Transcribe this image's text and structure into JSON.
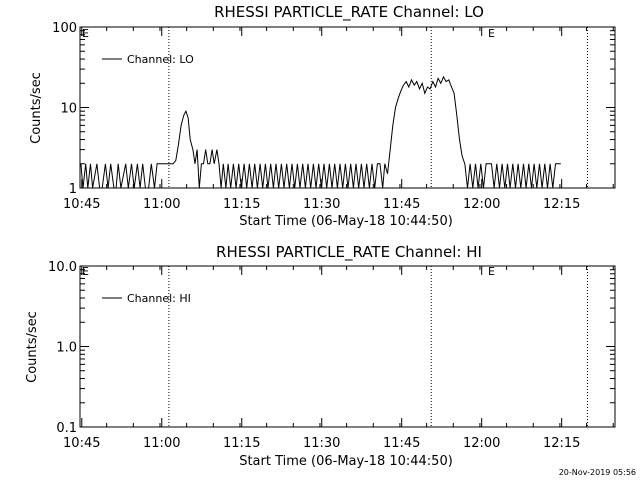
{
  "footer": {
    "timestamp": "20-Nov-2019 05:56"
  },
  "chart_data": [
    {
      "type": "line",
      "title": "RHESSI PARTICLE_RATE Channel: LO",
      "xlabel": "Start Time (06-May-18 10:44:50)",
      "ylabel": "Counts/sec",
      "yscale": "log",
      "ylim": [
        1,
        100
      ],
      "xlim": [
        -0.1667,
        100.1667
      ],
      "xtick_values": [
        0.1667,
        15.1667,
        30.1667,
        45.1667,
        60.1667,
        75.1667,
        90.1667
      ],
      "xtick_labels": [
        "10:45",
        "11:00",
        "11:15",
        "11:30",
        "11:45",
        "12:00",
        "12:15"
      ],
      "ytick_values": [
        1,
        10,
        100
      ],
      "ytick_labels": [
        "1",
        "10",
        "100"
      ],
      "legend": {
        "entries": [
          "Channel: LO"
        ],
        "placement": "top-left"
      },
      "event_lines": [
        {
          "x": 16.5,
          "label": ""
        },
        {
          "x": 65.7,
          "label": "E"
        },
        {
          "x": 95.0,
          "label": ""
        }
      ],
      "start_marker": "E",
      "series": [
        {
          "name": "Channel: LO",
          "points": [
            [
              0.0,
              2
            ],
            [
              0.4,
              1
            ],
            [
              0.9,
              2
            ],
            [
              1.3,
              1
            ],
            [
              1.8,
              2
            ],
            [
              2.2,
              1
            ],
            [
              3.0,
              2
            ],
            [
              3.5,
              1
            ],
            [
              4.0,
              1
            ],
            [
              4.6,
              2
            ],
            [
              5.1,
              1
            ],
            [
              5.6,
              2
            ],
            [
              6.2,
              1
            ],
            [
              6.6,
              1
            ],
            [
              7.0,
              2
            ],
            [
              7.5,
              1
            ],
            [
              8.4,
              2
            ],
            [
              8.9,
              1
            ],
            [
              9.5,
              2
            ],
            [
              10.0,
              1
            ],
            [
              10.6,
              2
            ],
            [
              11.1,
              1
            ],
            [
              11.6,
              2
            ],
            [
              12.1,
              1
            ],
            [
              12.7,
              1
            ],
            [
              13.2,
              2
            ],
            [
              13.8,
              1
            ],
            [
              14.3,
              2
            ],
            [
              14.8,
              2
            ],
            [
              15.4,
              2
            ],
            [
              16.0,
              2
            ],
            [
              16.8,
              2
            ],
            [
              17.3,
              2
            ],
            [
              17.8,
              2.2
            ],
            [
              18.3,
              3.5
            ],
            [
              18.8,
              6
            ],
            [
              19.3,
              8
            ],
            [
              19.7,
              9
            ],
            [
              20.1,
              7.5
            ],
            [
              20.5,
              4
            ],
            [
              21.0,
              3
            ],
            [
              21.4,
              2
            ],
            [
              21.8,
              3
            ],
            [
              22.2,
              1
            ],
            [
              22.6,
              2
            ],
            [
              23.0,
              2
            ],
            [
              23.4,
              3
            ],
            [
              23.8,
              2
            ],
            [
              24.2,
              2
            ],
            [
              24.6,
              3
            ],
            [
              25.0,
              2
            ],
            [
              25.5,
              3
            ],
            [
              25.9,
              2
            ],
            [
              26.3,
              1
            ],
            [
              26.7,
              2
            ],
            [
              27.2,
              1
            ],
            [
              27.6,
              2
            ],
            [
              28.1,
              1
            ],
            [
              28.6,
              2
            ],
            [
              29.1,
              1
            ],
            [
              29.6,
              2
            ],
            [
              30.1,
              1
            ],
            [
              30.6,
              2
            ],
            [
              31.1,
              1
            ],
            [
              31.6,
              2
            ],
            [
              32.1,
              1
            ],
            [
              32.6,
              2
            ],
            [
              33.1,
              1
            ],
            [
              33.6,
              2
            ],
            [
              34.1,
              1
            ],
            [
              34.6,
              2
            ],
            [
              35.1,
              1
            ],
            [
              35.6,
              2
            ],
            [
              36.1,
              1
            ],
            [
              36.6,
              2
            ],
            [
              37.1,
              1
            ],
            [
              37.6,
              2
            ],
            [
              38.1,
              1
            ],
            [
              38.6,
              2
            ],
            [
              39.1,
              1
            ],
            [
              39.6,
              2
            ],
            [
              40.1,
              1
            ],
            [
              40.6,
              2
            ],
            [
              41.1,
              1
            ],
            [
              41.6,
              2
            ],
            [
              42.1,
              1
            ],
            [
              42.6,
              2
            ],
            [
              43.1,
              1
            ],
            [
              43.6,
              2
            ],
            [
              44.1,
              1
            ],
            [
              44.6,
              2
            ],
            [
              45.1,
              1
            ],
            [
              45.6,
              2
            ],
            [
              46.1,
              1
            ],
            [
              46.6,
              2
            ],
            [
              47.1,
              1
            ],
            [
              47.6,
              2
            ],
            [
              48.1,
              1
            ],
            [
              48.6,
              2
            ],
            [
              49.1,
              1
            ],
            [
              49.6,
              2
            ],
            [
              50.1,
              1
            ],
            [
              50.6,
              2
            ],
            [
              51.1,
              1
            ],
            [
              51.6,
              2
            ],
            [
              52.1,
              1
            ],
            [
              52.6,
              2
            ],
            [
              53.1,
              1
            ],
            [
              53.6,
              2
            ],
            [
              54.1,
              1
            ],
            [
              54.6,
              2
            ],
            [
              55.1,
              1
            ],
            [
              55.6,
              2
            ],
            [
              56.1,
              2
            ],
            [
              56.6,
              1
            ],
            [
              57.0,
              2
            ],
            [
              57.5,
              1.5
            ],
            [
              58.0,
              3
            ],
            [
              58.5,
              6
            ],
            [
              59.0,
              10
            ],
            [
              59.5,
              13
            ],
            [
              60.0,
              16
            ],
            [
              60.5,
              19
            ],
            [
              61.0,
              21
            ],
            [
              61.5,
              18
            ],
            [
              62.0,
              22
            ],
            [
              62.5,
              19
            ],
            [
              63.0,
              21
            ],
            [
              63.5,
              17
            ],
            [
              64.0,
              20
            ],
            [
              64.5,
              15
            ],
            [
              65.0,
              18
            ],
            [
              65.5,
              17
            ],
            [
              66.0,
              21
            ],
            [
              66.5,
              18
            ],
            [
              67.0,
              23
            ],
            [
              67.5,
              20
            ],
            [
              68.0,
              24
            ],
            [
              68.5,
              21
            ],
            [
              69.0,
              22
            ],
            [
              69.5,
              18
            ],
            [
              70.0,
              15
            ],
            [
              70.5,
              8
            ],
            [
              71.0,
              4
            ],
            [
              71.5,
              2.5
            ],
            [
              72.0,
              2
            ],
            [
              72.5,
              1
            ],
            [
              73.0,
              2
            ],
            [
              73.5,
              1
            ],
            [
              74.0,
              2
            ],
            [
              74.5,
              1
            ],
            [
              75.0,
              2
            ],
            [
              75.5,
              1
            ],
            [
              76.0,
              2
            ],
            [
              76.5,
              2
            ],
            [
              77.0,
              2
            ],
            [
              77.5,
              1
            ],
            [
              78.0,
              2
            ],
            [
              78.5,
              1
            ],
            [
              79.0,
              2
            ],
            [
              79.5,
              1
            ],
            [
              80.0,
              2
            ],
            [
              80.5,
              1
            ],
            [
              81.0,
              2
            ],
            [
              81.5,
              1
            ],
            [
              82.0,
              2
            ],
            [
              82.5,
              1
            ],
            [
              83.0,
              2
            ],
            [
              83.5,
              1
            ],
            [
              84.0,
              2
            ],
            [
              84.5,
              1
            ],
            [
              85.0,
              2
            ],
            [
              85.5,
              1
            ],
            [
              86.0,
              2
            ],
            [
              86.5,
              1
            ],
            [
              87.0,
              2
            ],
            [
              87.5,
              1
            ],
            [
              88.0,
              2
            ],
            [
              88.5,
              1
            ],
            [
              89.0,
              2
            ],
            [
              89.5,
              2
            ],
            [
              90.0,
              2
            ]
          ]
        }
      ]
    },
    {
      "type": "line",
      "title": "RHESSI PARTICLE_RATE Channel: HI",
      "xlabel": "Start Time (06-May-18 10:44:50)",
      "ylabel": "Counts/sec",
      "yscale": "log",
      "ylim": [
        0.1,
        10
      ],
      "xlim": [
        -0.1667,
        100.1667
      ],
      "xtick_values": [
        0.1667,
        15.1667,
        30.1667,
        45.1667,
        60.1667,
        75.1667,
        90.1667
      ],
      "xtick_labels": [
        "10:45",
        "11:00",
        "11:15",
        "11:30",
        "11:45",
        "12:00",
        "12:15"
      ],
      "ytick_values": [
        0.1,
        1,
        10
      ],
      "ytick_labels": [
        "0.1",
        "1.0",
        "10.0"
      ],
      "legend": {
        "entries": [
          "Channel: HI"
        ],
        "placement": "top-left"
      },
      "event_lines": [
        {
          "x": 16.5,
          "label": ""
        },
        {
          "x": 65.7,
          "label": "E"
        },
        {
          "x": 95.0,
          "label": ""
        }
      ],
      "start_marker": "E",
      "series": [
        {
          "name": "Channel: HI",
          "points": []
        }
      ]
    }
  ]
}
